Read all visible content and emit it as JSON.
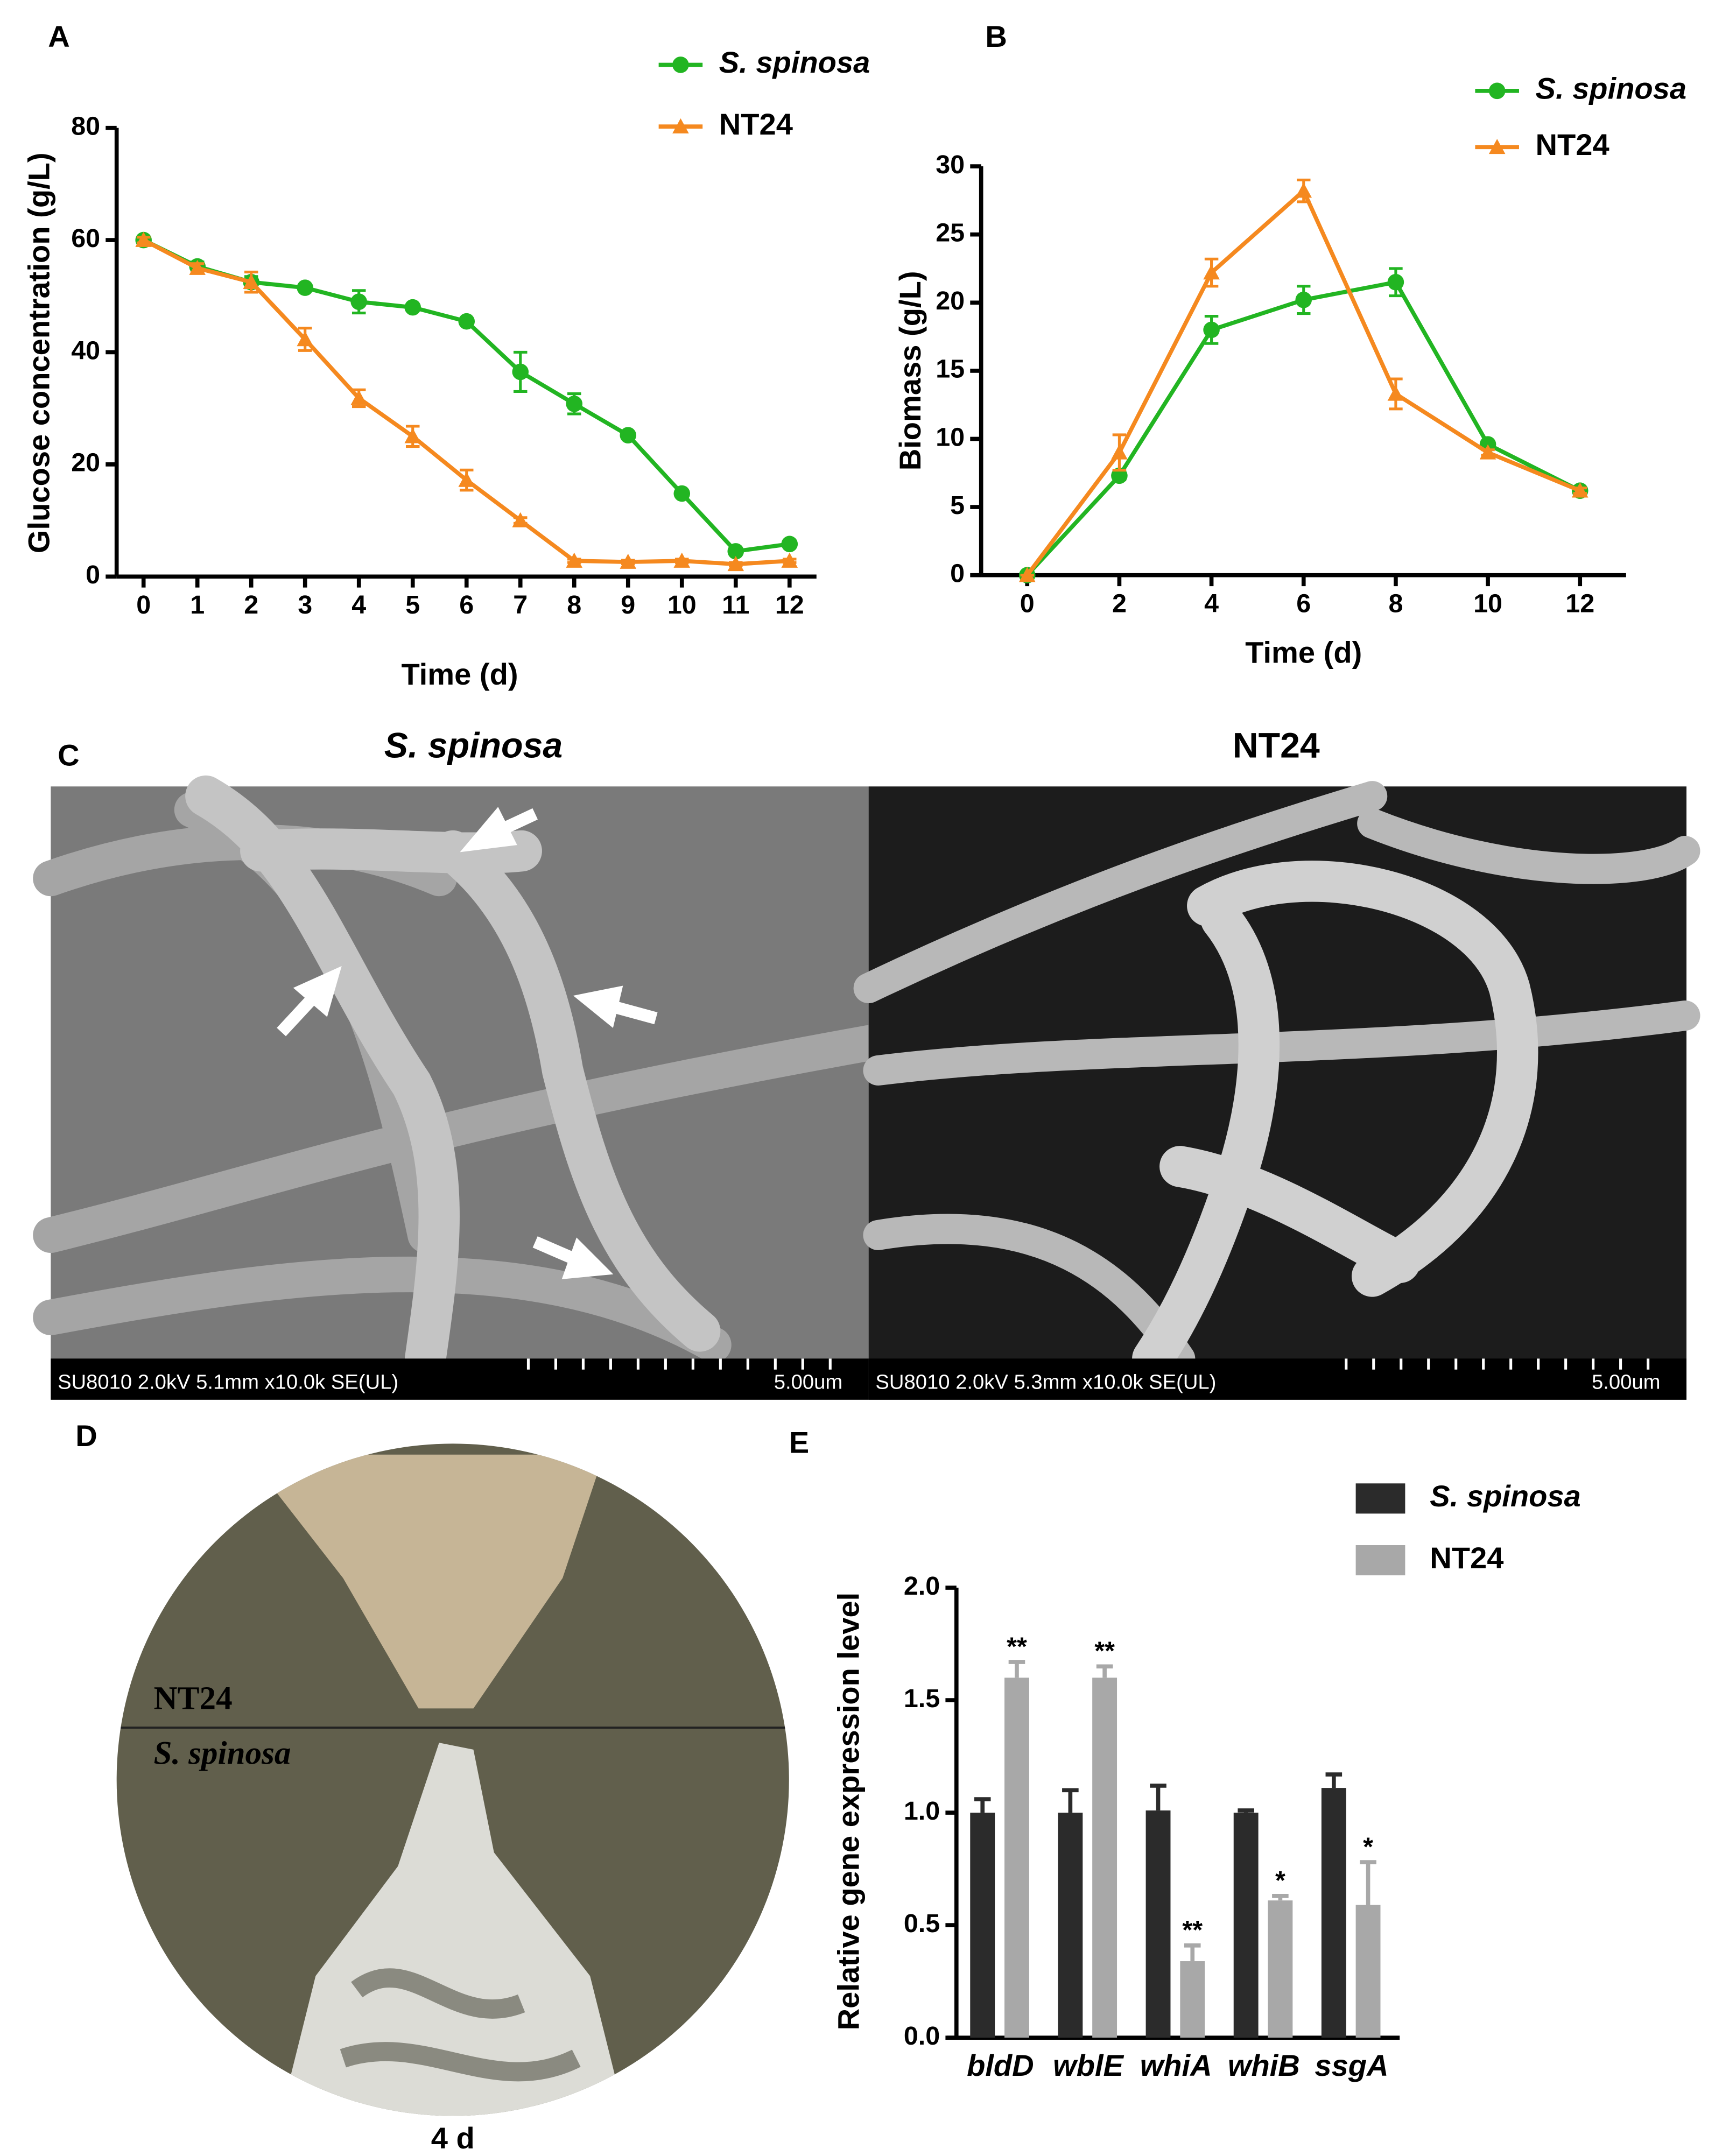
{
  "chart_data": [
    {
      "type": "line",
      "label": "A",
      "x_label": "Time (d)",
      "y_label": "Glucose concentration (g/L)",
      "x": [
        0,
        1,
        2,
        3,
        4,
        5,
        6,
        7,
        8,
        9,
        10,
        11,
        12
      ],
      "xlim": [
        -0.5,
        12.5
      ],
      "xticks": [
        0,
        1,
        2,
        3,
        4,
        5,
        6,
        7,
        8,
        9,
        10,
        11,
        12
      ],
      "ylim": [
        0,
        80
      ],
      "yticks": [
        0,
        20,
        40,
        60,
        80
      ],
      "series": [
        {
          "name": "S. spinosa",
          "color": "#22b522",
          "marker": "circle",
          "values": [
            60,
            55.3,
            52.5,
            51.5,
            49,
            48,
            45.5,
            36.5,
            30.8,
            25.2,
            14.8,
            4.5,
            5.8
          ],
          "errors": [
            0.5,
            0.8,
            1,
            0.5,
            2,
            0.5,
            0.5,
            3.5,
            1.8,
            0.5,
            0.5,
            0.5,
            0.5
          ]
        },
        {
          "name": "NT24",
          "color": "#f5891f",
          "marker": "triangle",
          "values": [
            60,
            55,
            52.5,
            42.3,
            31.8,
            25,
            17.2,
            10,
            2.8,
            2.6,
            2.8,
            2.2,
            2.8
          ],
          "errors": [
            0.5,
            0.8,
            1.8,
            2,
            1.5,
            1.8,
            1.8,
            0.5,
            0.3,
            0.3,
            0.3,
            0.3,
            0.3
          ]
        }
      ]
    },
    {
      "type": "line",
      "label": "B",
      "x_label": "Time (d)",
      "y_label": "Biomass (g/L)",
      "x": [
        0,
        2,
        4,
        6,
        8,
        10,
        12
      ],
      "xlim": [
        -1,
        13
      ],
      "xticks": [
        0,
        2,
        4,
        6,
        8,
        10,
        12
      ],
      "ylim": [
        0,
        30
      ],
      "yticks": [
        0,
        5,
        10,
        15,
        20,
        25,
        30
      ],
      "series": [
        {
          "name": "S. spinosa",
          "color": "#22b522",
          "marker": "circle",
          "values": [
            0,
            7.3,
            18,
            20.2,
            21.5,
            9.6,
            6.2
          ],
          "errors": [
            0,
            0.3,
            1,
            1,
            1,
            0.2,
            0.2
          ]
        },
        {
          "name": "NT24",
          "color": "#f5891f",
          "marker": "triangle",
          "values": [
            0,
            9,
            22.2,
            28.2,
            13.3,
            9,
            6.2
          ],
          "errors": [
            0,
            1.3,
            1,
            0.8,
            1.1,
            0.2,
            0.2
          ]
        }
      ]
    },
    {
      "type": "bar",
      "label": "E",
      "y_label": "Relative gene expression level",
      "categories": [
        "bldD",
        "wblE",
        "whiA",
        "whiB",
        "ssgA"
      ],
      "ylim": [
        0,
        2
      ],
      "yticks": [
        {
          "value": 0,
          "label": "0.0"
        },
        0.5,
        {
          "value": 1,
          "label": "1.0"
        },
        1.5,
        {
          "value": 2,
          "label": "2.0"
        }
      ],
      "series": [
        {
          "name": "S. spinosa",
          "color": "#2b2b2b",
          "values": [
            1.0,
            1.0,
            1.01,
            1.0,
            1.11
          ],
          "errors": [
            0.06,
            0.1,
            0.11,
            0.01,
            0.06
          ]
        },
        {
          "name": "NT24",
          "color": "#a8a8a8",
          "values": [
            1.6,
            1.6,
            0.34,
            0.61,
            0.59
          ],
          "errors": [
            0.07,
            0.05,
            0.07,
            0.02,
            0.19
          ],
          "annotations": [
            "**",
            "**",
            "**",
            "*",
            "*"
          ]
        }
      ]
    }
  ],
  "panel_c": {
    "label": "C",
    "titles": [
      "S. spinosa",
      "NT24"
    ],
    "captions": [
      [
        "SU8010 2.0kV 5.1mm x10.0k SE(UL)",
        "5.00um"
      ],
      [
        "SU8010 2.0kV 5.3mm x10.0k SE(UL)",
        "5.00um"
      ]
    ]
  },
  "panel_d": {
    "label": "D",
    "top": "NT24",
    "bottom": "S. spinosa",
    "caption": "4 d"
  }
}
